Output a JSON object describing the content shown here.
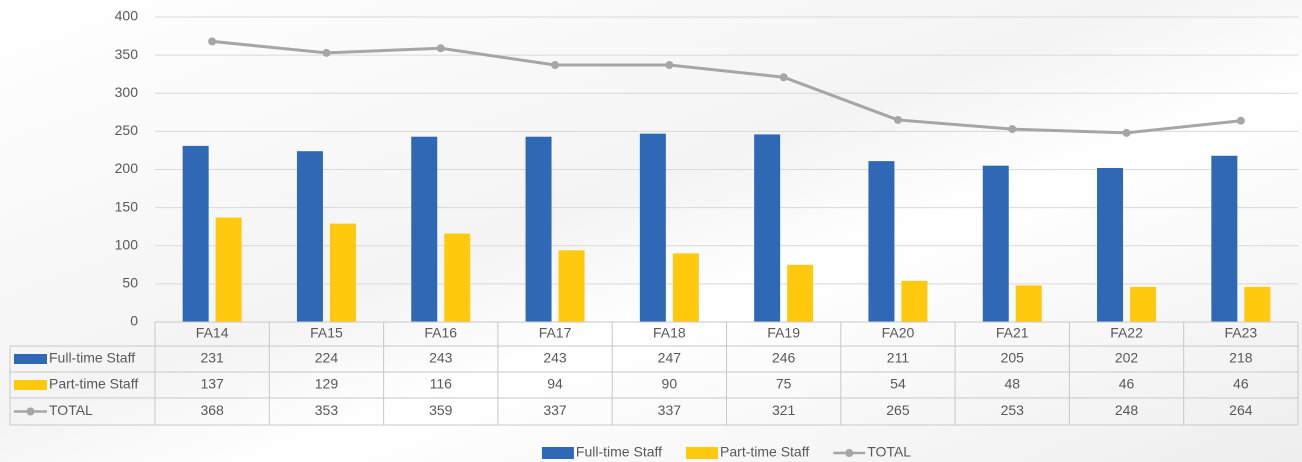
{
  "chart_data": {
    "type": "bar",
    "categories": [
      "FA14",
      "FA15",
      "FA16",
      "FA17",
      "FA18",
      "FA19",
      "FA20",
      "FA21",
      "FA22",
      "FA23"
    ],
    "series": [
      {
        "name": "Full-time Staff",
        "color": "#2f68b5",
        "type": "bar",
        "values": [
          231,
          224,
          243,
          243,
          247,
          246,
          211,
          205,
          202,
          218
        ]
      },
      {
        "name": "Part-time Staff",
        "color": "#ffc90e",
        "type": "bar",
        "values": [
          137,
          129,
          116,
          94,
          90,
          75,
          54,
          48,
          46,
          46
        ]
      },
      {
        "name": "TOTAL",
        "color": "#a6a6a6",
        "type": "line",
        "values": [
          368,
          353,
          359,
          337,
          337,
          321,
          265,
          253,
          248,
          264
        ]
      }
    ],
    "ylim": [
      0,
      400
    ],
    "yticks": [
      0,
      50,
      100,
      150,
      200,
      250,
      300,
      350,
      400
    ],
    "grid": true,
    "legend": "bottom",
    "data_table": true
  }
}
